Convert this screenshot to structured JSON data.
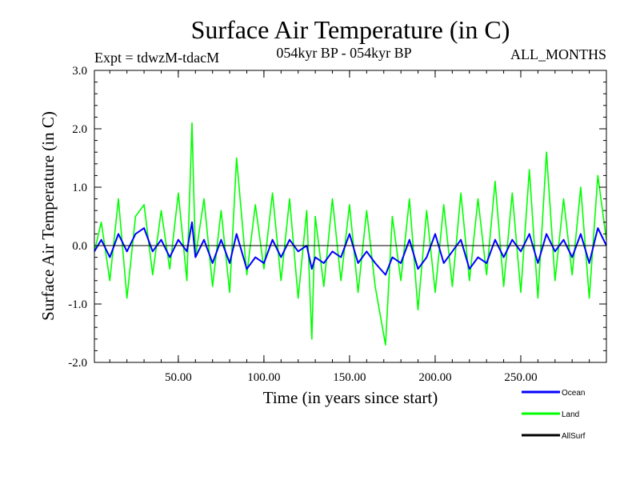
{
  "chart_data": {
    "type": "line",
    "title": "Surface Air Temperature (in C)",
    "subtitle_left": "Expt = tdwzM-tdacM",
    "subtitle_center": "054kyr BP - 054kyr BP",
    "subtitle_right": "ALL_MONTHS",
    "xlabel": "Time (in years since start)",
    "ylabel": "Surface Air Temperature (in C)",
    "xlim": [
      1,
      300
    ],
    "ylim": [
      -2.0,
      3.0
    ],
    "x_ticks": [
      50,
      100,
      150,
      200,
      250
    ],
    "x_tick_labels": [
      "50.00",
      "100.00",
      "150.00",
      "200.00",
      "250.00"
    ],
    "y_ticks": [
      -2,
      -1,
      0,
      1,
      2,
      3
    ],
    "y_tick_labels": [
      "-2.0",
      "-1.0",
      "0.0",
      "1.0",
      "2.0",
      "3.0"
    ],
    "zero_line": 0.0,
    "grid": false,
    "legend_position": "bottom-right",
    "series": [
      {
        "name": "Land",
        "color": "#00ff00",
        "x": [
          1,
          5,
          10,
          15,
          20,
          25,
          30,
          35,
          40,
          45,
          50,
          55,
          58,
          60,
          65,
          70,
          75,
          80,
          84,
          90,
          95,
          100,
          105,
          110,
          115,
          120,
          125,
          128,
          130,
          135,
          140,
          145,
          150,
          155,
          160,
          165,
          171,
          175,
          180,
          185,
          190,
          195,
          200,
          205,
          210,
          215,
          220,
          225,
          230,
          235,
          240,
          245,
          250,
          255,
          260,
          265,
          270,
          275,
          280,
          285,
          290,
          295,
          300
        ],
        "values": [
          -0.1,
          0.4,
          -0.6,
          0.8,
          -0.9,
          0.5,
          0.7,
          -0.5,
          0.6,
          -0.4,
          0.9,
          -0.6,
          2.1,
          -0.2,
          0.8,
          -0.7,
          0.6,
          -0.8,
          1.5,
          -0.5,
          0.7,
          -0.4,
          0.9,
          -0.6,
          0.8,
          -0.9,
          0.6,
          -1.6,
          0.5,
          -0.7,
          0.8,
          -0.6,
          0.7,
          -0.8,
          0.6,
          -0.7,
          -1.7,
          0.5,
          -0.6,
          0.8,
          -1.1,
          0.6,
          -0.8,
          0.7,
          -0.7,
          0.9,
          -0.6,
          0.8,
          -0.5,
          1.1,
          -0.7,
          0.9,
          -0.8,
          1.3,
          -0.9,
          1.6,
          -0.6,
          0.8,
          -0.5,
          1.0,
          -0.9,
          1.2,
          0.1
        ]
      },
      {
        "name": "Ocean",
        "color": "#0000ff",
        "x": [
          1,
          5,
          10,
          15,
          20,
          25,
          30,
          35,
          40,
          45,
          50,
          55,
          58,
          60,
          65,
          70,
          75,
          80,
          84,
          90,
          95,
          100,
          105,
          110,
          115,
          120,
          125,
          128,
          130,
          135,
          140,
          145,
          150,
          155,
          160,
          165,
          171,
          175,
          180,
          185,
          190,
          195,
          200,
          205,
          210,
          215,
          220,
          225,
          230,
          235,
          240,
          245,
          250,
          255,
          260,
          265,
          270,
          275,
          280,
          285,
          290,
          295,
          300
        ],
        "values": [
          -0.1,
          0.1,
          -0.2,
          0.2,
          -0.1,
          0.2,
          0.3,
          -0.1,
          0.1,
          -0.2,
          0.1,
          -0.1,
          0.4,
          -0.2,
          0.1,
          -0.3,
          0.1,
          -0.3,
          0.2,
          -0.4,
          -0.2,
          -0.3,
          0.1,
          -0.2,
          0.1,
          -0.1,
          0.0,
          -0.4,
          -0.2,
          -0.3,
          -0.1,
          -0.2,
          0.2,
          -0.3,
          -0.1,
          -0.3,
          -0.5,
          -0.2,
          -0.3,
          0.1,
          -0.4,
          -0.2,
          0.2,
          -0.3,
          -0.1,
          0.1,
          -0.4,
          -0.2,
          -0.3,
          0.1,
          -0.2,
          0.1,
          -0.1,
          0.2,
          -0.3,
          0.2,
          -0.1,
          0.1,
          -0.2,
          0.2,
          -0.3,
          0.3,
          0.0
        ]
      },
      {
        "name": "AllSurf",
        "color": "#000000",
        "x": [],
        "values": []
      }
    ],
    "legend": [
      {
        "name": "Ocean",
        "color": "#0000ff"
      },
      {
        "name": "Land",
        "color": "#00ff00"
      },
      {
        "name": "AllSurf",
        "color": "#000000"
      }
    ]
  }
}
